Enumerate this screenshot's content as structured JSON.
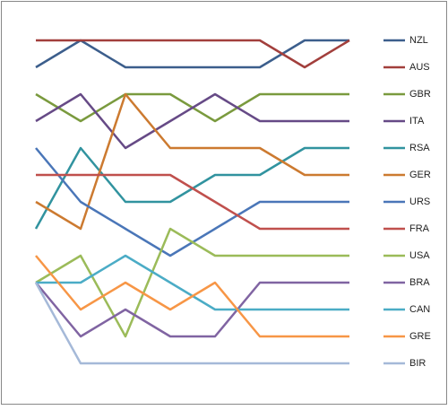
{
  "chart_data": {
    "type": "line",
    "ylim": [
      13,
      1
    ],
    "legend": "right",
    "series": [
      {
        "name": "NZL",
        "color": "#3c5e8c",
        "values": [
          2,
          1,
          2,
          2,
          2,
          2,
          1,
          1
        ]
      },
      {
        "name": "AUS",
        "color": "#a23f3c",
        "values": [
          1,
          1,
          1,
          1,
          1,
          1,
          2,
          1
        ]
      },
      {
        "name": "GBR",
        "color": "#7a9a3e",
        "values": [
          3,
          4,
          3,
          3,
          4,
          3,
          3,
          3
        ]
      },
      {
        "name": "ITA",
        "color": "#664a86",
        "values": [
          4,
          3,
          5,
          4,
          3,
          4,
          4,
          4
        ]
      },
      {
        "name": "RSA",
        "color": "#31939f",
        "values": [
          8,
          5,
          7,
          7,
          6,
          6,
          5,
          5
        ]
      },
      {
        "name": "GER",
        "color": "#cc7a30",
        "values": [
          7,
          8,
          3,
          5,
          5,
          5,
          6,
          6
        ]
      },
      {
        "name": "URS",
        "color": "#4a76b8",
        "values": [
          5,
          7,
          8,
          9,
          8,
          7,
          7,
          7
        ]
      },
      {
        "name": "FRA",
        "color": "#c0504d",
        "values": [
          6,
          6,
          6,
          6,
          7,
          8,
          8,
          8
        ]
      },
      {
        "name": "USA",
        "color": "#9bbb59",
        "values": [
          10,
          9,
          12,
          8,
          9,
          9,
          9,
          9
        ]
      },
      {
        "name": "BRA",
        "color": "#8064a2",
        "values": [
          10,
          12,
          11,
          12,
          12,
          10,
          10,
          10
        ]
      },
      {
        "name": "CAN",
        "color": "#4bacc6",
        "values": [
          10,
          10,
          9,
          10,
          11,
          11,
          11,
          11
        ]
      },
      {
        "name": "GRE",
        "color": "#f79646",
        "values": [
          9,
          11,
          10,
          11,
          10,
          12,
          12,
          12
        ]
      },
      {
        "name": "BIR",
        "color": "#a5b9d8",
        "values": [
          10,
          13,
          13,
          13,
          13,
          13,
          13,
          13
        ]
      }
    ]
  }
}
